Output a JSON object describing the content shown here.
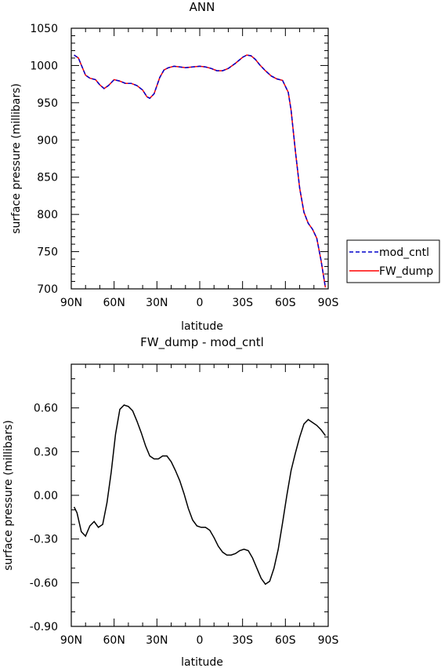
{
  "chart_data": [
    {
      "type": "line",
      "title": "ANN",
      "xlabel": "latitude",
      "ylabel": "surface pressure (millibars)",
      "xlim": [
        90,
        -90
      ],
      "ylim": [
        700,
        1050
      ],
      "xtick_values": [
        90,
        60,
        30,
        0,
        -30,
        -60,
        -90
      ],
      "xtick_labels": [
        "90N",
        "60N",
        "30N",
        "0",
        "30S",
        "60S",
        "90S"
      ],
      "ytick_values": [
        700,
        750,
        800,
        850,
        900,
        950,
        1000,
        1050
      ],
      "ytick_labels": [
        "700",
        "750",
        "800",
        "850",
        "900",
        "950",
        "1000",
        "1050"
      ],
      "legend_position": "right",
      "series": [
        {
          "name": "mod_cntl",
          "color": "#0000cc",
          "style": "dashed",
          "x": [
            88,
            85,
            80,
            77,
            73,
            70,
            67,
            64,
            60,
            56,
            52,
            48,
            44,
            40,
            37,
            35,
            32,
            28,
            25,
            22,
            18,
            14,
            10,
            5,
            0,
            -4,
            -8,
            -12,
            -16,
            -20,
            -25,
            -30,
            -33,
            -36,
            -39,
            -42,
            -46,
            -50,
            -54,
            -58,
            -62,
            -64,
            -67,
            -70,
            -73,
            -76,
            -79,
            -82,
            -85,
            -88
          ],
          "y": [
            1014,
            1010,
            987,
            983,
            981,
            974,
            969,
            973,
            981,
            979,
            976,
            976,
            973,
            967,
            958,
            956,
            962,
            984,
            994,
            997,
            999,
            998,
            997,
            998,
            999,
            998,
            996,
            993,
            993,
            996,
            1003,
            1011,
            1014,
            1013,
            1008,
            1001,
            993,
            986,
            982,
            980,
            964,
            940,
            885,
            835,
            803,
            788,
            780,
            768,
            738,
            702
          ]
        },
        {
          "name": "FW_dump",
          "color": "#ff0000",
          "style": "solid",
          "x": [
            88,
            85,
            80,
            77,
            73,
            70,
            67,
            64,
            60,
            56,
            52,
            48,
            44,
            40,
            37,
            35,
            32,
            28,
            25,
            22,
            18,
            14,
            10,
            5,
            0,
            -4,
            -8,
            -12,
            -16,
            -20,
            -25,
            -30,
            -33,
            -36,
            -39,
            -42,
            -46,
            -50,
            -54,
            -58,
            -62,
            -64,
            -67,
            -70,
            -73,
            -76,
            -79,
            -82,
            -85,
            -88
          ],
          "y": [
            1014,
            1010,
            987,
            983,
            981,
            974,
            969,
            973,
            981,
            979,
            976,
            976,
            973,
            967,
            958,
            956,
            962,
            984,
            994,
            997,
            999,
            998,
            997,
            998,
            999,
            998,
            996,
            993,
            993,
            996,
            1003,
            1011,
            1014,
            1013,
            1008,
            1001,
            993,
            986,
            982,
            980,
            964,
            940,
            885,
            835,
            803,
            788,
            780,
            768,
            738,
            702
          ]
        }
      ]
    },
    {
      "type": "line",
      "title": "FW_dump - mod_cntl",
      "xlabel": "latitude",
      "ylabel": "surface pressure (millibars)",
      "xlim": [
        90,
        -90
      ],
      "ylim": [
        -0.9,
        0.9
      ],
      "xtick_values": [
        90,
        60,
        30,
        0,
        -30,
        -60,
        -90
      ],
      "xtick_labels": [
        "90N",
        "60N",
        "30N",
        "0",
        "30S",
        "60S",
        "90S"
      ],
      "ytick_values": [
        -0.9,
        -0.6,
        -0.3,
        0.0,
        0.3,
        0.6
      ],
      "ytick_labels": [
        "-0.90",
        "-0.60",
        "-0.30",
        "0.00",
        "0.30",
        "0.60"
      ],
      "series": [
        {
          "name": "",
          "color": "#000000",
          "style": "solid",
          "x": [
            88,
            86,
            83,
            80,
            77,
            74,
            71,
            68,
            65,
            62,
            59,
            56,
            53,
            50,
            47,
            44,
            41,
            38,
            35,
            32,
            29,
            26,
            23,
            20,
            17,
            14,
            11,
            8,
            5,
            2,
            -1,
            -4,
            -7,
            -10,
            -13,
            -16,
            -19,
            -22,
            -25,
            -28,
            -31,
            -34,
            -37,
            -40,
            -43,
            -46,
            -49,
            -52,
            -55,
            -58,
            -61,
            -64,
            -67,
            -70,
            -73,
            -76,
            -79,
            -82,
            -85,
            -88
          ],
          "y": [
            -0.08,
            -0.12,
            -0.25,
            -0.28,
            -0.21,
            -0.18,
            -0.22,
            -0.2,
            -0.05,
            0.16,
            0.42,
            0.59,
            0.62,
            0.61,
            0.58,
            0.51,
            0.43,
            0.34,
            0.27,
            0.25,
            0.25,
            0.27,
            0.27,
            0.23,
            0.17,
            0.1,
            0.01,
            -0.09,
            -0.17,
            -0.21,
            -0.22,
            -0.22,
            -0.24,
            -0.29,
            -0.35,
            -0.39,
            -0.41,
            -0.41,
            -0.4,
            -0.38,
            -0.37,
            -0.38,
            -0.43,
            -0.5,
            -0.57,
            -0.61,
            -0.59,
            -0.5,
            -0.37,
            -0.19,
            0.0,
            0.17,
            0.29,
            0.4,
            0.49,
            0.52,
            0.5,
            0.48,
            0.45,
            0.41
          ]
        }
      ]
    }
  ]
}
